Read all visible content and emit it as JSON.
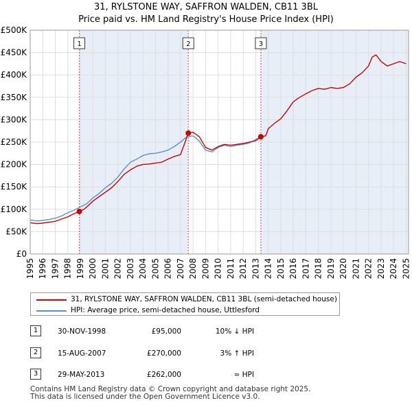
{
  "header": {
    "title_line1": "31, RYLSTONE WAY, SAFFRON WALDEN, CB11 3BL",
    "title_line2": "Price paid vs. HM Land Registry's House Price Index (HPI)"
  },
  "colors": {
    "price_line": "#cc0000",
    "hpi_line": "#5b8fc9",
    "shade": "#e8eef8",
    "grid": "#dddddd",
    "vline": "#cc0000"
  },
  "chart_data": {
    "type": "line",
    "title": "31, RYLSTONE WAY, SAFFRON WALDEN, CB11 3BL",
    "subtitle": "Price paid vs. HM Land Registry's House Price Index (HPI)",
    "xlabel": "",
    "ylabel": "",
    "xlim": [
      1995,
      2025.2
    ],
    "ylim": [
      0,
      500000
    ],
    "y_ticks": [
      0,
      50000,
      100000,
      150000,
      200000,
      250000,
      300000,
      350000,
      400000,
      450000,
      500000
    ],
    "y_tick_labels": [
      "£0",
      "£50K",
      "£100K",
      "£150K",
      "£200K",
      "£250K",
      "£300K",
      "£350K",
      "£400K",
      "£450K",
      "£500K"
    ],
    "x_ticks": [
      1995,
      1996,
      1997,
      1998,
      1999,
      2000,
      2001,
      2002,
      2003,
      2004,
      2005,
      2006,
      2007,
      2008,
      2009,
      2010,
      2011,
      2012,
      2013,
      2014,
      2015,
      2016,
      2017,
      2018,
      2019,
      2020,
      2021,
      2022,
      2023,
      2024,
      2025
    ],
    "x_tick_labels": [
      "1995",
      "1996",
      "1997",
      "1998",
      "1999",
      "2000",
      "2001",
      "2002",
      "2003",
      "2004",
      "2005",
      "2006",
      "2007",
      "2008",
      "2009",
      "2010",
      "2011",
      "2012",
      "2013",
      "2014",
      "2015",
      "2016",
      "2017",
      "2018",
      "2019",
      "2020",
      "2021",
      "2022",
      "2023",
      "2024",
      "2025"
    ],
    "grid": true,
    "series": [
      {
        "name": "31, RYLSTONE WAY, SAFFRON WALDEN, CB11 3BL (semi-detached house)",
        "color": "#cc0000",
        "x": [
          1995.0,
          1995.5,
          1996.0,
          1996.5,
          1997.0,
          1997.5,
          1998.0,
          1998.5,
          1998.92,
          1999.3,
          1999.7,
          2000.0,
          2000.5,
          2001.0,
          2001.5,
          2002.0,
          2002.5,
          2003.0,
          2003.5,
          2004.0,
          2004.5,
          2005.0,
          2005.5,
          2006.0,
          2006.5,
          2007.0,
          2007.3,
          2007.62,
          2008.0,
          2008.5,
          2009.0,
          2009.5,
          2010.0,
          2010.5,
          2011.0,
          2011.5,
          2012.0,
          2012.5,
          2013.0,
          2013.41,
          2013.8,
          2014.0,
          2014.5,
          2015.0,
          2015.5,
          2016.0,
          2016.5,
          2017.0,
          2017.5,
          2018.0,
          2018.5,
          2019.0,
          2019.5,
          2020.0,
          2020.5,
          2021.0,
          2021.5,
          2022.0,
          2022.3,
          2022.6,
          2023.0,
          2023.5,
          2024.0,
          2024.5,
          2025.0
        ],
        "values": [
          70000,
          68000,
          69000,
          71000,
          73000,
          78000,
          83000,
          90000,
          95000,
          100000,
          110000,
          118000,
          128000,
          138000,
          148000,
          162000,
          178000,
          188000,
          196000,
          200000,
          201000,
          203000,
          205000,
          212000,
          218000,
          222000,
          245000,
          270000,
          272000,
          262000,
          238000,
          232000,
          240000,
          245000,
          243000,
          245000,
          247000,
          250000,
          253000,
          262000,
          264000,
          280000,
          292000,
          302000,
          320000,
          340000,
          350000,
          358000,
          365000,
          370000,
          368000,
          372000,
          370000,
          372000,
          380000,
          395000,
          405000,
          420000,
          440000,
          445000,
          430000,
          420000,
          425000,
          430000,
          425000
        ]
      },
      {
        "name": "HPI: Average price, semi-detached house, Uttlesford",
        "color": "#5b8fc9",
        "x": [
          1995.0,
          1995.5,
          1996.0,
          1996.5,
          1997.0,
          1997.5,
          1998.0,
          1998.5,
          1999.0,
          1999.5,
          2000.0,
          2000.5,
          2001.0,
          2001.5,
          2002.0,
          2002.5,
          2003.0,
          2003.5,
          2004.0,
          2004.5,
          2005.0,
          2005.5,
          2006.0,
          2006.5,
          2007.0,
          2007.5,
          2008.0,
          2008.5,
          2009.0,
          2009.5,
          2010.0,
          2010.5,
          2011.0,
          2011.5,
          2012.0,
          2012.5,
          2013.0,
          2013.41
        ],
        "values": [
          76000,
          74000,
          75000,
          77000,
          80000,
          85000,
          92000,
          98000,
          105000,
          112000,
          125000,
          135000,
          148000,
          158000,
          172000,
          190000,
          205000,
          212000,
          220000,
          224000,
          225000,
          228000,
          232000,
          240000,
          250000,
          262000,
          264000,
          252000,
          232000,
          228000,
          238000,
          243000,
          240000,
          243000,
          245000,
          248000,
          256000,
          262000
        ]
      }
    ],
    "sales": [
      {
        "label": "1",
        "x": 1998.92,
        "price": 95000
      },
      {
        "label": "2",
        "x": 2007.62,
        "price": 270000
      },
      {
        "label": "3",
        "x": 2013.41,
        "price": 262000
      }
    ],
    "shaded_ranges": [
      [
        1998.92,
        2007.62
      ],
      [
        2013.41,
        2025.2
      ]
    ],
    "legend_position": "below"
  },
  "legend": {
    "items": [
      {
        "label": "31, RYLSTONE WAY, SAFFRON WALDEN, CB11 3BL (semi-detached house)"
      },
      {
        "label": "HPI: Average price, semi-detached house, Uttlesford"
      }
    ]
  },
  "table": {
    "rows": [
      {
        "num": "1",
        "date": "30-NOV-1998",
        "price": "£95,000",
        "hpi": "10% ↓ HPI"
      },
      {
        "num": "2",
        "date": "15-AUG-2007",
        "price": "£270,000",
        "hpi": "3% ↑ HPI"
      },
      {
        "num": "3",
        "date": "29-MAY-2013",
        "price": "£262,000",
        "hpi": "≈ HPI"
      }
    ]
  },
  "footer": {
    "line1": "Contains HM Land Registry data © Crown copyright and database right 2025.",
    "line2": "This data is licensed under the Open Government Licence v3.0."
  }
}
